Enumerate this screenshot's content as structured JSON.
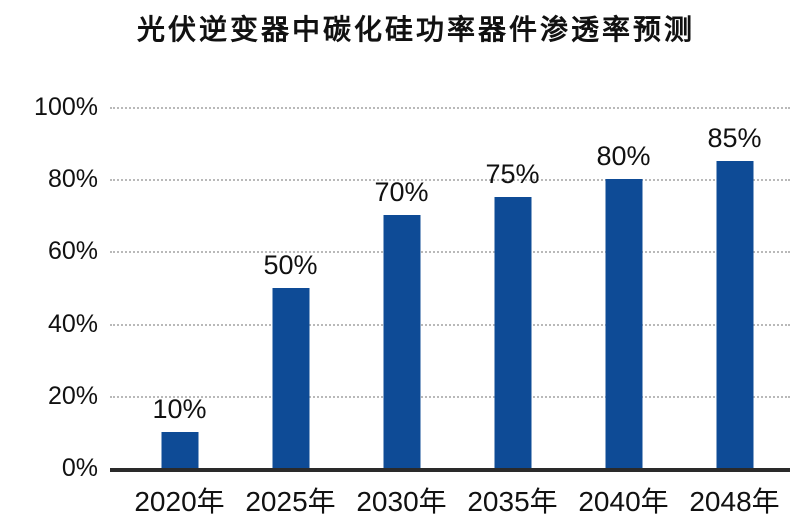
{
  "chart_data": {
    "type": "bar",
    "title": "光伏逆变器中碳化硅功率器件渗透率预测",
    "categories": [
      "2020年",
      "2025年",
      "2030年",
      "2035年",
      "2040年",
      "2048年"
    ],
    "values": [
      10,
      50,
      70,
      75,
      80,
      85
    ],
    "value_labels": [
      "10%",
      "50%",
      "70%",
      "75%",
      "80%",
      "85%"
    ],
    "yticks": [
      {
        "label": "0%",
        "value": 0
      },
      {
        "label": "20%",
        "value": 20
      },
      {
        "label": "40%",
        "value": 40
      },
      {
        "label": "60%",
        "value": 60
      },
      {
        "label": "80%",
        "value": 80
      },
      {
        "label": "100%",
        "value": 100
      }
    ],
    "ylim": [
      0,
      100
    ],
    "xlabel": "",
    "ylabel": "",
    "grid": "horizontal-dotted",
    "legend_position": "none",
    "colors": {
      "bar": "#0e4b96",
      "axis": "#2a2a2a",
      "gridline": "#b9b9b9",
      "text": "#111111",
      "background": "#ffffff"
    }
  }
}
